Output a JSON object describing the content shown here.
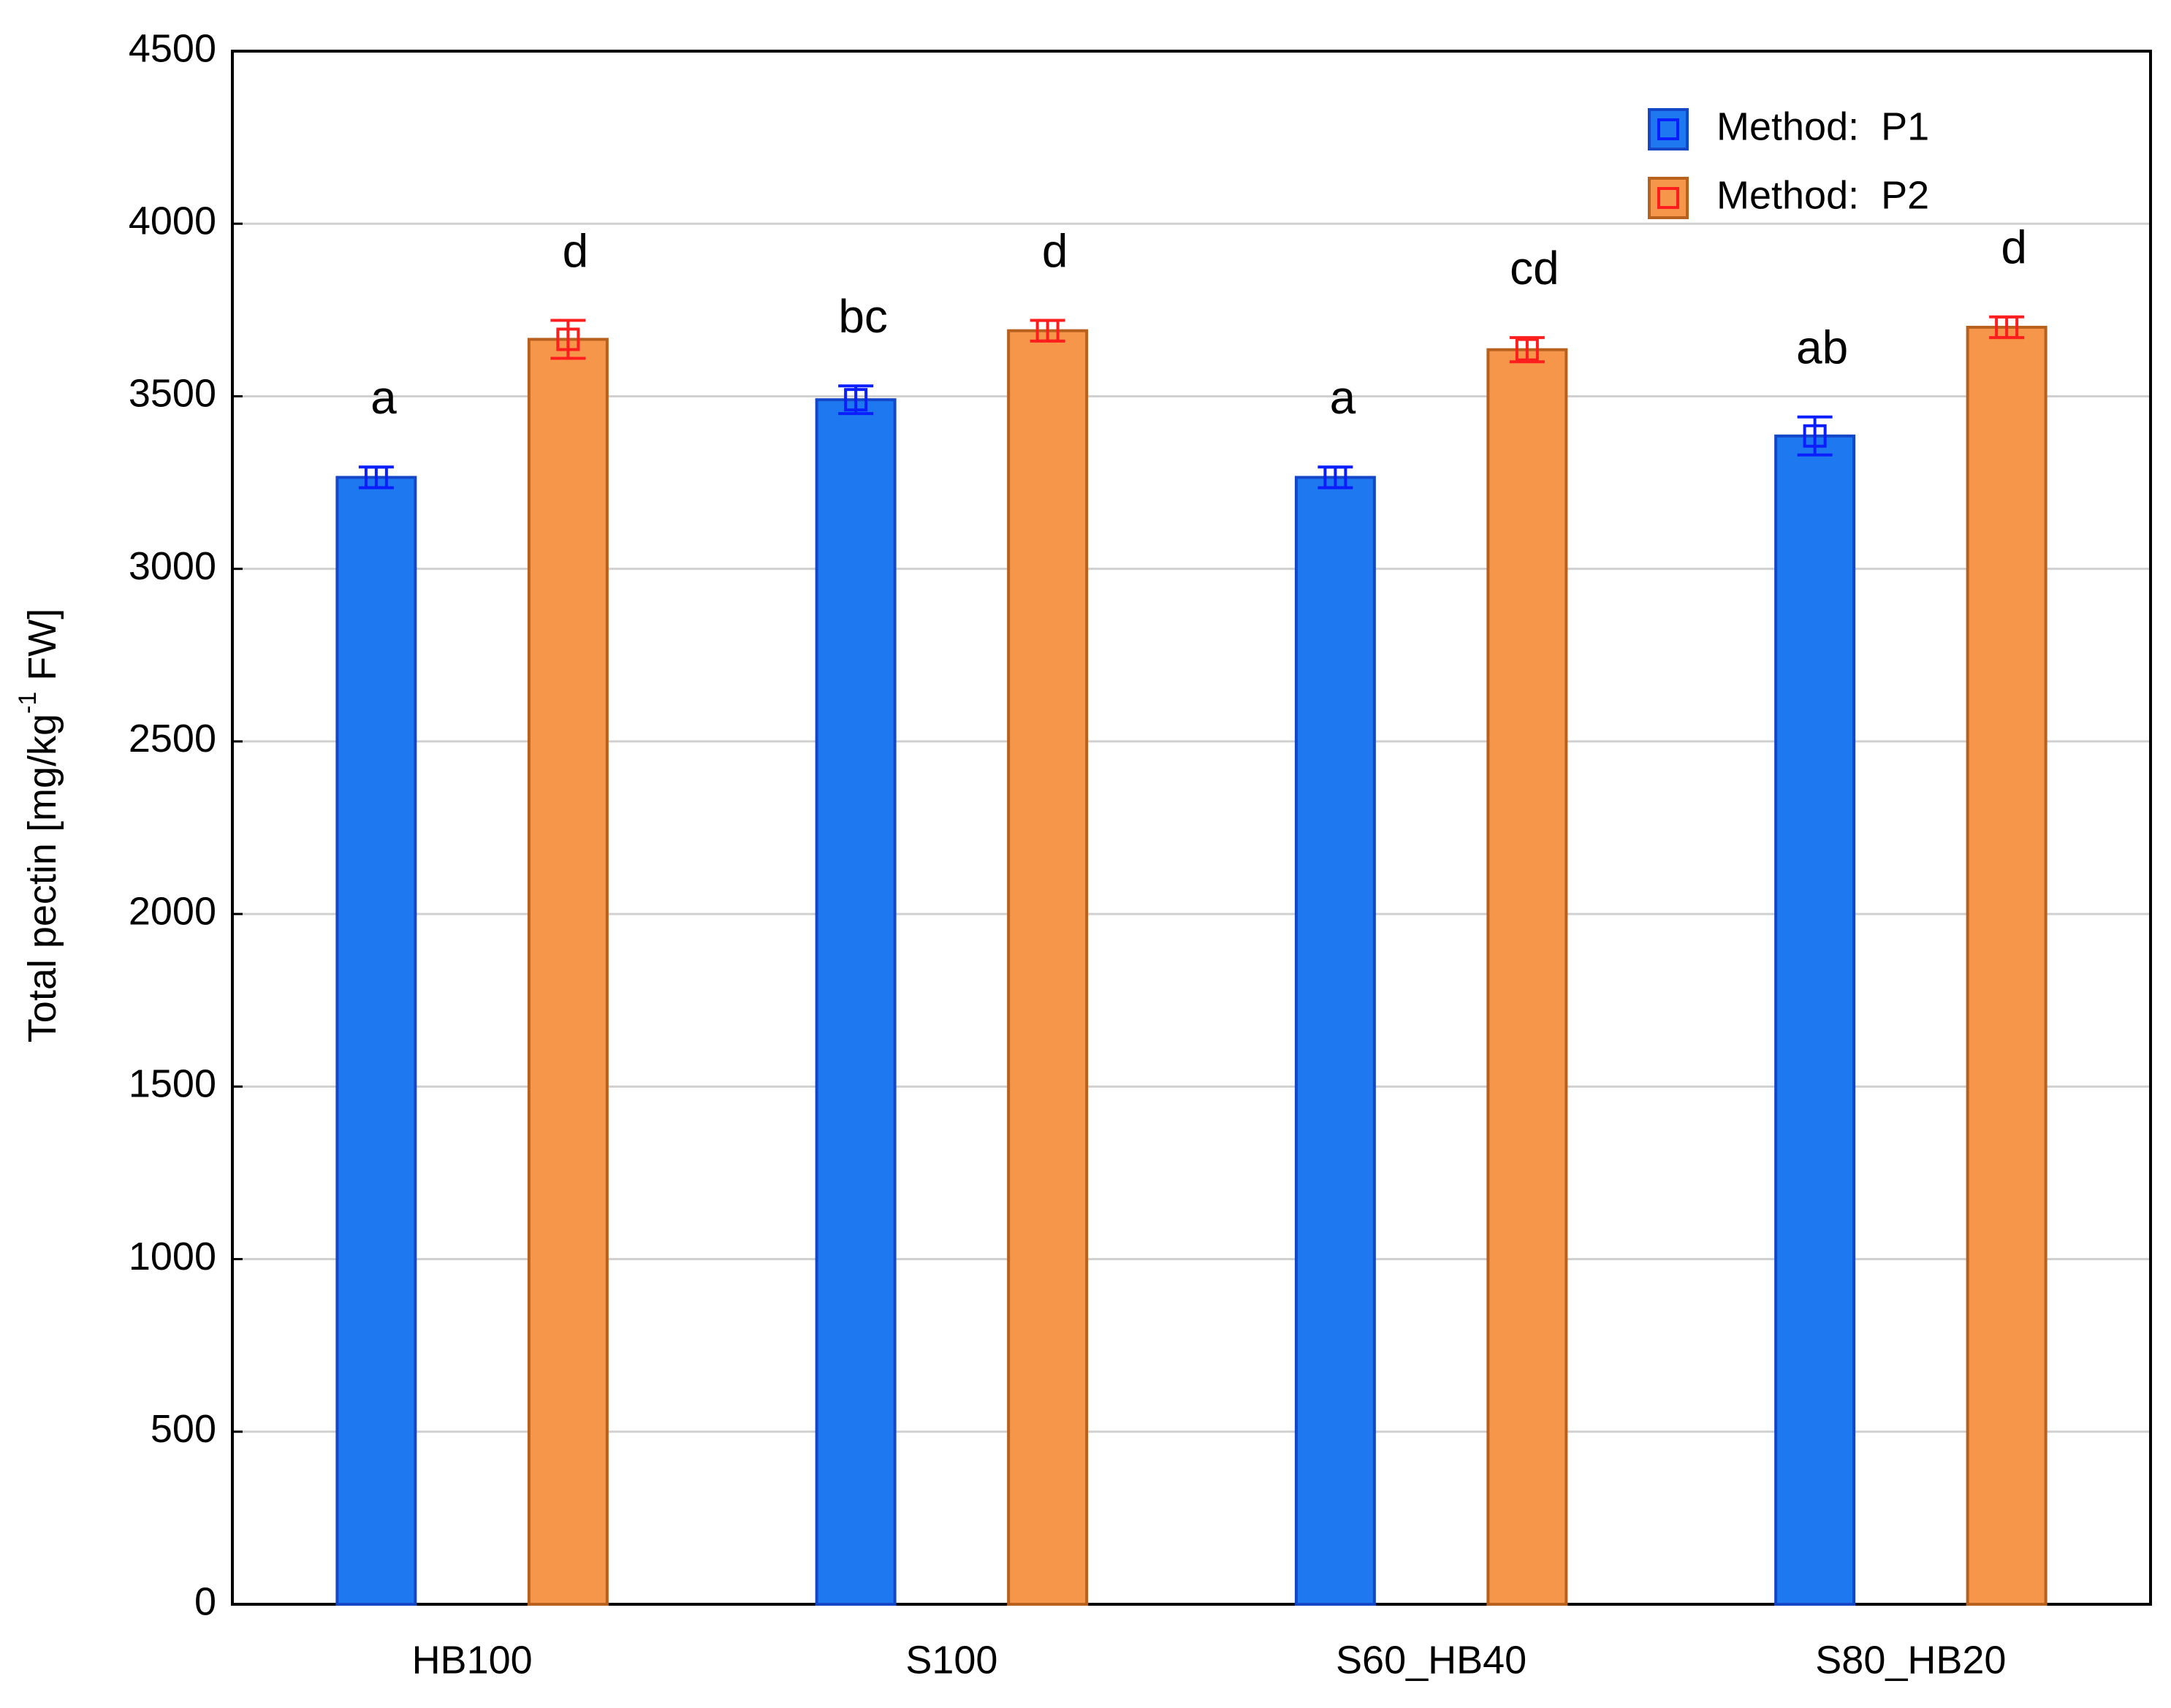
{
  "chart_data": {
    "type": "bar",
    "ylabel": "Total pectin [mg/kg",
    "ylabel_sup": "-1",
    "ylabel_end": " FW]",
    "categories": [
      "HB100",
      "S100",
      "S60_HB40",
      "S80_HB20"
    ],
    "series": [
      {
        "name": "Method:  P1",
        "color": "#1e78f0",
        "edge": "#1446c8",
        "error_color": "#0a1eff",
        "values": [
          3265,
          3490,
          3265,
          3385
        ],
        "errors": [
          30,
          40,
          30,
          55
        ],
        "labels": [
          "a",
          "bc",
          "a",
          "ab"
        ]
      },
      {
        "name": "Method:  P2",
        "color": "#f5964a",
        "edge": "#b8601e",
        "error_color": "#ff1e1e",
        "values": [
          3665,
          3690,
          3635,
          3700
        ],
        "errors": [
          55,
          30,
          35,
          30
        ],
        "labels": [
          "d",
          "d",
          "cd",
          "d"
        ]
      }
    ],
    "ylim": [
      0,
      4500
    ],
    "yticks": [
      0,
      500,
      1000,
      1500,
      2000,
      2500,
      3000,
      3500,
      4000,
      4500
    ],
    "grid": true
  }
}
